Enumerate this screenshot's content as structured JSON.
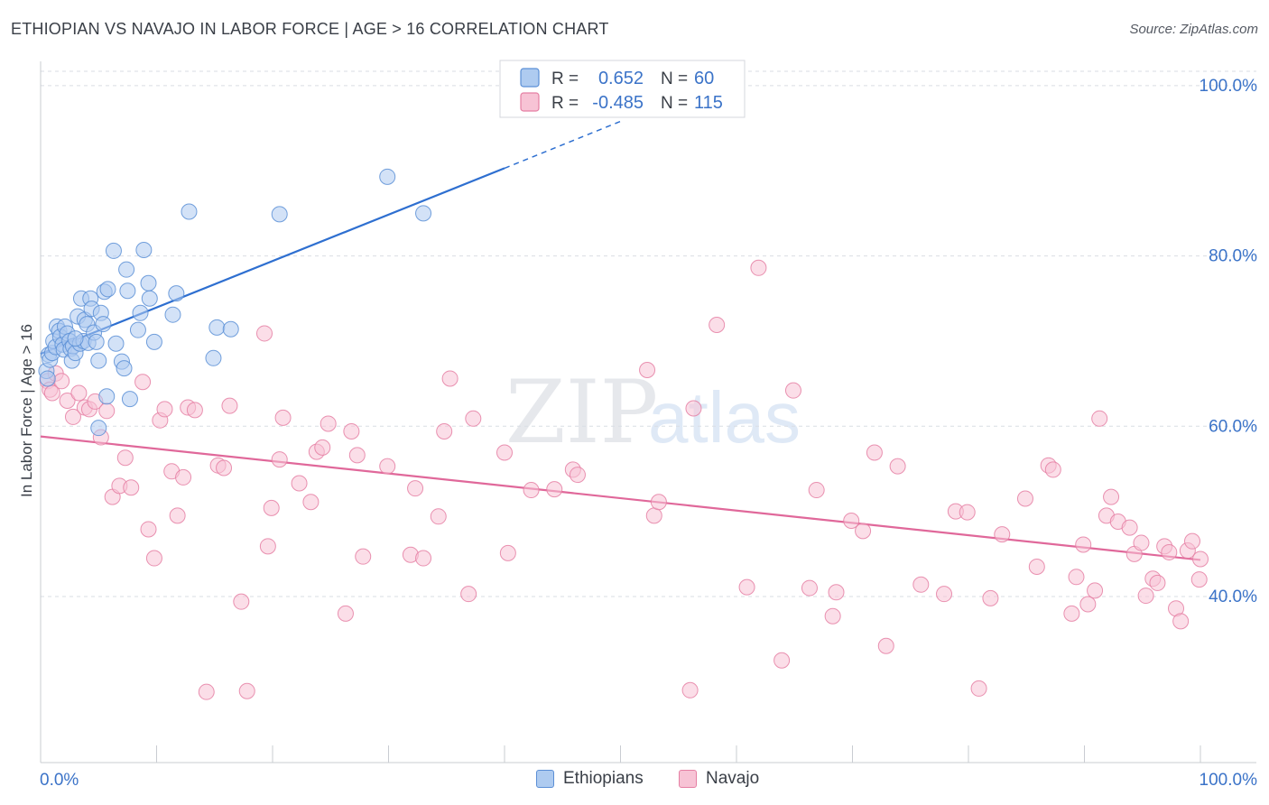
{
  "header": {
    "title": "ETHIOPIAN VS NAVAJO IN LABOR FORCE | AGE > 16 CORRELATION CHART",
    "source": "Source: ZipAtlas.com"
  },
  "watermark": {
    "zip": "ZIP",
    "atlas": "atlas"
  },
  "colors": {
    "ethiopians_fill": "#aecbf0",
    "ethiopians_stroke": "#5b8fd6",
    "ethiopians_line": "#2e6fd0",
    "navajo_fill": "#f7c3d5",
    "navajo_stroke": "#e57fa3",
    "navajo_line": "#e0689a",
    "tick_label": "#3b73c8",
    "grid": "#d9dde3"
  },
  "chart_data": {
    "type": "scatter",
    "title": "ETHIOPIAN VS NAVAJO IN LABOR FORCE | AGE > 16 CORRELATION CHART",
    "xlabel": "",
    "ylabel": "In Labor Force | Age > 16",
    "xlim": [
      0,
      100
    ],
    "ylim": [
      20.5,
      102
    ],
    "x_tick_labels": [
      "0.0%",
      "100.0%"
    ],
    "y_ticks": [
      40,
      60,
      80,
      100
    ],
    "y_tick_labels": [
      "40.0%",
      "60.0%",
      "80.0%",
      "100.0%"
    ],
    "grid": "horizontal dashed",
    "legend_position": "top-center",
    "legend": [
      {
        "series": "Ethiopians",
        "r_label": "R = ",
        "r_value": "0.652",
        "n_label": "N = ",
        "n_value": "60"
      },
      {
        "series": "Navajo",
        "r_label": "R = ",
        "r_value": "-0.485",
        "n_label": "N = ",
        "n_value": "115"
      }
    ],
    "series": [
      {
        "name": "Ethiopians",
        "trend": {
          "x": [
            0,
            40
          ],
          "y": [
            68.5,
            90.3
          ],
          "dashed_to": [
            50,
            95.8
          ]
        },
        "points": [
          [
            0.5,
            66.5
          ],
          [
            0.6,
            65.6
          ],
          [
            0.7,
            68.4
          ],
          [
            0.8,
            67.8
          ],
          [
            1.0,
            68.6
          ],
          [
            1.1,
            70.0
          ],
          [
            1.3,
            69.3
          ],
          [
            1.4,
            71.7
          ],
          [
            1.6,
            71.2
          ],
          [
            1.7,
            70.5
          ],
          [
            1.9,
            69.6
          ],
          [
            2.0,
            69.0
          ],
          [
            2.1,
            71.7
          ],
          [
            2.3,
            70.9
          ],
          [
            2.5,
            70.0
          ],
          [
            2.6,
            69.1
          ],
          [
            2.7,
            67.7
          ],
          [
            2.8,
            69.4
          ],
          [
            3.0,
            68.6
          ],
          [
            3.2,
            72.9
          ],
          [
            3.4,
            69.7
          ],
          [
            3.5,
            75.0
          ],
          [
            3.7,
            70.0
          ],
          [
            3.8,
            72.5
          ],
          [
            4.0,
            72.0
          ],
          [
            4.1,
            69.8
          ],
          [
            4.3,
            75.0
          ],
          [
            4.4,
            73.8
          ],
          [
            4.6,
            71.0
          ],
          [
            4.8,
            69.9
          ],
          [
            5.0,
            67.7
          ],
          [
            5.2,
            73.3
          ],
          [
            5.4,
            72.0
          ],
          [
            5.5,
            75.8
          ],
          [
            5.7,
            63.5
          ],
          [
            5.8,
            76.1
          ],
          [
            6.3,
            80.6
          ],
          [
            6.5,
            69.7
          ],
          [
            7.0,
            67.6
          ],
          [
            7.2,
            66.8
          ],
          [
            7.4,
            78.4
          ],
          [
            7.5,
            75.9
          ],
          [
            7.7,
            63.2
          ],
          [
            8.4,
            71.3
          ],
          [
            8.6,
            73.3
          ],
          [
            8.9,
            80.7
          ],
          [
            9.3,
            76.8
          ],
          [
            9.4,
            75.0
          ],
          [
            9.8,
            69.9
          ],
          [
            11.4,
            73.1
          ],
          [
            11.7,
            75.6
          ],
          [
            12.8,
            85.2
          ],
          [
            14.9,
            68.0
          ],
          [
            15.2,
            71.6
          ],
          [
            16.4,
            71.4
          ],
          [
            20.6,
            84.9
          ],
          [
            29.9,
            89.3
          ],
          [
            33.0,
            85.0
          ],
          [
            5.0,
            59.8
          ],
          [
            3.0,
            70.3
          ]
        ]
      },
      {
        "name": "Navajo",
        "trend": {
          "x": [
            0,
            100
          ],
          "y": [
            58.8,
            44.3
          ]
        },
        "points": [
          [
            0.6,
            65.3
          ],
          [
            0.8,
            64.3
          ],
          [
            1.0,
            63.9
          ],
          [
            1.3,
            66.2
          ],
          [
            1.8,
            65.3
          ],
          [
            2.3,
            63.0
          ],
          [
            2.8,
            61.1
          ],
          [
            3.3,
            63.9
          ],
          [
            3.8,
            62.2
          ],
          [
            4.2,
            62.0
          ],
          [
            4.7,
            62.9
          ],
          [
            5.2,
            58.7
          ],
          [
            5.7,
            61.8
          ],
          [
            6.2,
            51.7
          ],
          [
            6.8,
            53.0
          ],
          [
            7.3,
            56.3
          ],
          [
            7.8,
            52.8
          ],
          [
            8.8,
            65.2
          ],
          [
            9.3,
            47.9
          ],
          [
            9.8,
            44.5
          ],
          [
            10.3,
            60.7
          ],
          [
            10.7,
            62.0
          ],
          [
            11.3,
            54.7
          ],
          [
            11.8,
            49.5
          ],
          [
            12.3,
            54.0
          ],
          [
            12.7,
            62.2
          ],
          [
            13.3,
            61.9
          ],
          [
            14.3,
            28.8
          ],
          [
            15.3,
            55.4
          ],
          [
            15.8,
            55.1
          ],
          [
            16.3,
            62.4
          ],
          [
            17.3,
            39.4
          ],
          [
            17.8,
            28.9
          ],
          [
            19.3,
            70.9
          ],
          [
            19.6,
            45.9
          ],
          [
            19.9,
            50.4
          ],
          [
            20.6,
            56.1
          ],
          [
            20.9,
            61.0
          ],
          [
            22.3,
            53.3
          ],
          [
            23.3,
            51.1
          ],
          [
            23.8,
            57.0
          ],
          [
            24.3,
            57.5
          ],
          [
            24.8,
            60.3
          ],
          [
            26.3,
            38.0
          ],
          [
            26.8,
            59.4
          ],
          [
            27.3,
            56.6
          ],
          [
            27.8,
            44.7
          ],
          [
            29.9,
            55.3
          ],
          [
            31.9,
            44.9
          ],
          [
            32.3,
            52.7
          ],
          [
            33.0,
            44.5
          ],
          [
            34.3,
            49.4
          ],
          [
            34.8,
            59.4
          ],
          [
            35.3,
            65.6
          ],
          [
            36.9,
            40.3
          ],
          [
            37.3,
            60.9
          ],
          [
            40.0,
            56.9
          ],
          [
            40.3,
            45.1
          ],
          [
            42.3,
            52.5
          ],
          [
            44.3,
            52.6
          ],
          [
            45.9,
            54.9
          ],
          [
            46.3,
            54.3
          ],
          [
            52.3,
            66.6
          ],
          [
            52.9,
            49.5
          ],
          [
            53.3,
            51.1
          ],
          [
            56.3,
            62.1
          ],
          [
            58.3,
            71.9
          ],
          [
            60.9,
            41.1
          ],
          [
            61.9,
            78.6
          ],
          [
            63.9,
            32.5
          ],
          [
            64.9,
            64.2
          ],
          [
            66.9,
            52.5
          ],
          [
            68.3,
            37.7
          ],
          [
            68.6,
            40.5
          ],
          [
            69.9,
            48.9
          ],
          [
            70.9,
            47.7
          ],
          [
            71.9,
            56.9
          ],
          [
            72.9,
            34.2
          ],
          [
            73.9,
            55.3
          ],
          [
            75.9,
            41.4
          ],
          [
            77.9,
            40.3
          ],
          [
            78.9,
            50.0
          ],
          [
            79.9,
            49.9
          ],
          [
            80.9,
            29.2
          ],
          [
            81.9,
            39.8
          ],
          [
            82.9,
            47.3
          ],
          [
            84.9,
            51.5
          ],
          [
            85.9,
            43.5
          ],
          [
            86.9,
            55.4
          ],
          [
            87.3,
            54.9
          ],
          [
            88.9,
            38.0
          ],
          [
            89.3,
            42.3
          ],
          [
            89.9,
            46.1
          ],
          [
            90.3,
            39.1
          ],
          [
            90.9,
            40.7
          ],
          [
            91.3,
            60.9
          ],
          [
            91.9,
            49.5
          ],
          [
            92.3,
            51.7
          ],
          [
            92.9,
            48.8
          ],
          [
            93.9,
            48.1
          ],
          [
            94.3,
            45.0
          ],
          [
            94.9,
            46.3
          ],
          [
            95.3,
            40.1
          ],
          [
            95.9,
            42.1
          ],
          [
            96.3,
            41.6
          ],
          [
            96.9,
            45.9
          ],
          [
            97.3,
            45.2
          ],
          [
            97.9,
            38.6
          ],
          [
            98.3,
            37.1
          ],
          [
            98.9,
            45.4
          ],
          [
            99.3,
            46.5
          ],
          [
            99.9,
            42.0
          ],
          [
            100.0,
            44.4
          ],
          [
            66.3,
            41.0
          ],
          [
            56.0,
            29.0
          ]
        ]
      }
    ]
  }
}
